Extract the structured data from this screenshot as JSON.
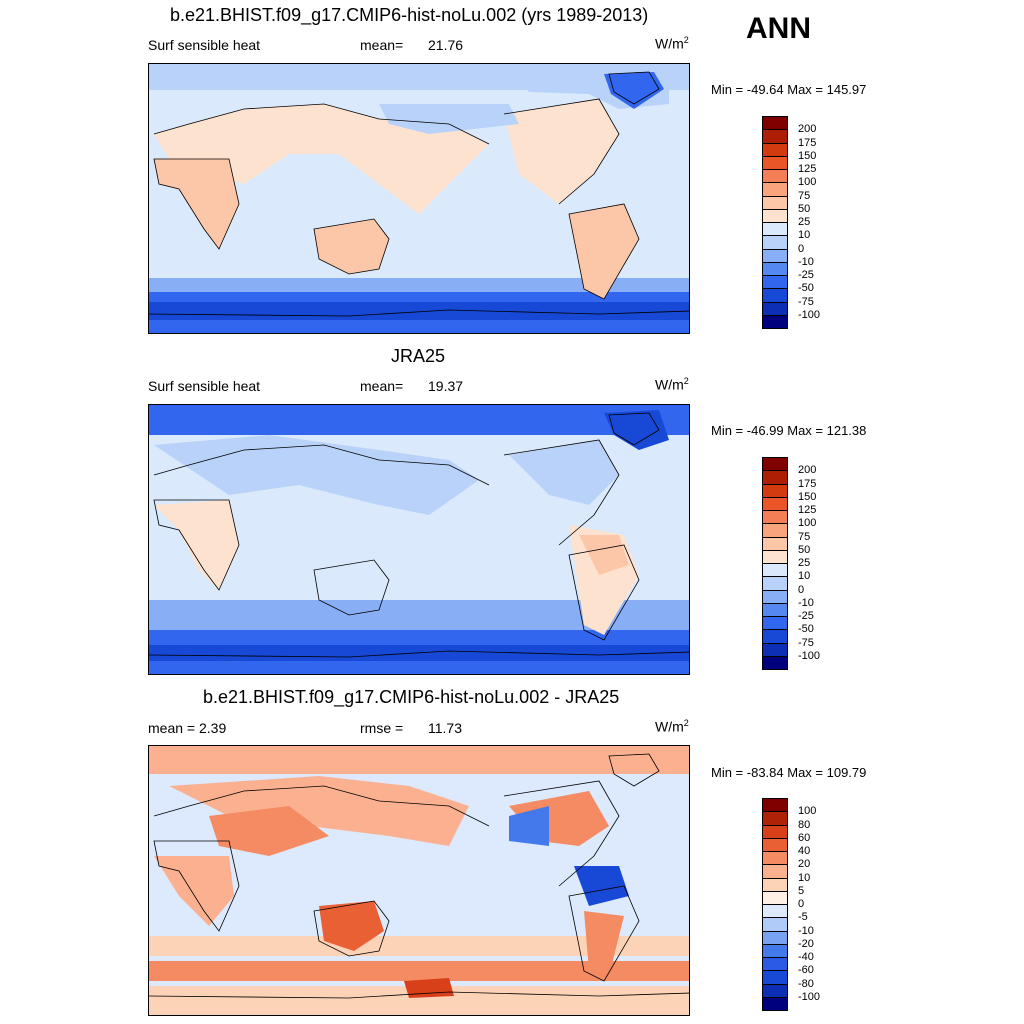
{
  "season": "ANN",
  "panels": [
    {
      "id": "model",
      "title": "b.e21.BHIST.f09_g17.CMIP6-hist-noLu.002 (yrs 1989-2013)",
      "left_label": "Surf sensible heat",
      "stat_label": "mean=",
      "stat_value": "21.76",
      "units_base": "W/m",
      "units_sup": "2",
      "minmax": "Min = -49.64 Max = 145.97",
      "levels": [
        "-100",
        "-75",
        "-50",
        "-25",
        "-10",
        "0",
        "10",
        "25",
        "50",
        "75",
        "100",
        "125",
        "150",
        "175",
        "200"
      ],
      "colors": [
        "#00007f",
        "#0c2fb5",
        "#1848d6",
        "#3366ee",
        "#5588f0",
        "#88aef5",
        "#b9d2fa",
        "#dbe9fc",
        "#fde3cf",
        "#fcc7a8",
        "#f9a47d",
        "#f47e55",
        "#ea5628",
        "#d23a10",
        "#ad1e04",
        "#800000"
      ]
    },
    {
      "id": "obs",
      "title": "JRA25",
      "left_label": "Surf sensible heat",
      "stat_label": "mean=",
      "stat_value": "19.37",
      "units_base": "W/m",
      "units_sup": "2",
      "minmax": "Min = -46.99 Max = 121.38",
      "levels": [
        "-100",
        "-75",
        "-50",
        "-25",
        "-10",
        "0",
        "10",
        "25",
        "50",
        "75",
        "100",
        "125",
        "150",
        "175",
        "200"
      ],
      "colors": [
        "#00007f",
        "#0c2fb5",
        "#1848d6",
        "#3366ee",
        "#5588f0",
        "#88aef5",
        "#b9d2fa",
        "#dbe9fc",
        "#fde3cf",
        "#fcc7a8",
        "#f9a47d",
        "#f47e55",
        "#ea5628",
        "#d23a10",
        "#ad1e04",
        "#800000"
      ]
    },
    {
      "id": "diff",
      "title": "b.e21.BHIST.f09_g17.CMIP6-hist-noLu.002 - JRA25",
      "left_label": "mean =   2.39",
      "stat_label": "rmse =",
      "stat_value": "11.73",
      "units_base": "W/m",
      "units_sup": "2",
      "minmax": "Min = -83.84 Max = 109.79",
      "levels": [
        "-100",
        "-80",
        "-60",
        "-40",
        "-20",
        "-10",
        "-5",
        "0",
        "5",
        "10",
        "20",
        "40",
        "60",
        "80",
        "100"
      ],
      "colors": [
        "#00007f",
        "#0c2fb5",
        "#1848d6",
        "#2a5ae6",
        "#4479ec",
        "#7aa2f2",
        "#b0cbf8",
        "#dde9fc",
        "#fff0e5",
        "#fdd3b8",
        "#fbb090",
        "#f48b63",
        "#ea6035",
        "#d8401a",
        "#b02208",
        "#800000"
      ]
    }
  ]
}
